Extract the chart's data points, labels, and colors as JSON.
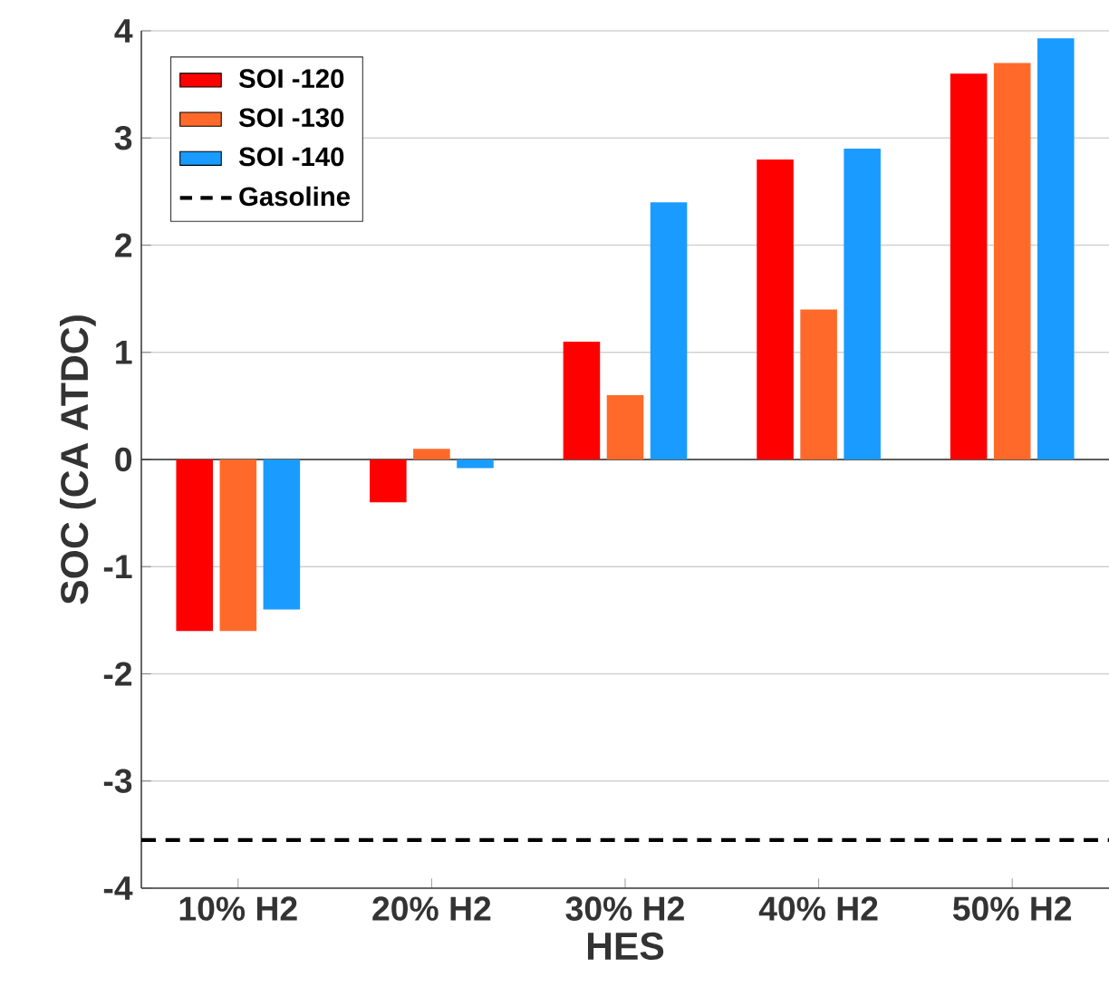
{
  "chart_data": {
    "type": "bar",
    "xlabel": "HES",
    "ylabel": "SOC (CA ATDC)",
    "categories": [
      "10% H2",
      "20% H2",
      "30% H2",
      "40% H2",
      "50% H2"
    ],
    "series": [
      {
        "name": "SOI -120",
        "color": "#ff0000",
        "values": [
          -1.6,
          -0.4,
          1.1,
          2.8,
          3.6
        ]
      },
      {
        "name": "SOI -130",
        "color": "#ff6a2a",
        "values": [
          -1.6,
          0.1,
          0.6,
          1.4,
          3.7
        ]
      },
      {
        "name": "SOI -140",
        "color": "#1a9bff",
        "values": [
          -1.4,
          -0.08,
          2.4,
          2.9,
          3.93
        ]
      }
    ],
    "ref_lines": [
      {
        "axis": "y",
        "value": -3.55,
        "label": "Gasoline",
        "color": "#000000",
        "line_style": "dashed"
      }
    ],
    "ylim": [
      -4,
      4
    ],
    "yticks": [
      -4,
      -3,
      -2,
      -1,
      0,
      1,
      2,
      3,
      4
    ],
    "grid": "y",
    "legend": "top left"
  }
}
